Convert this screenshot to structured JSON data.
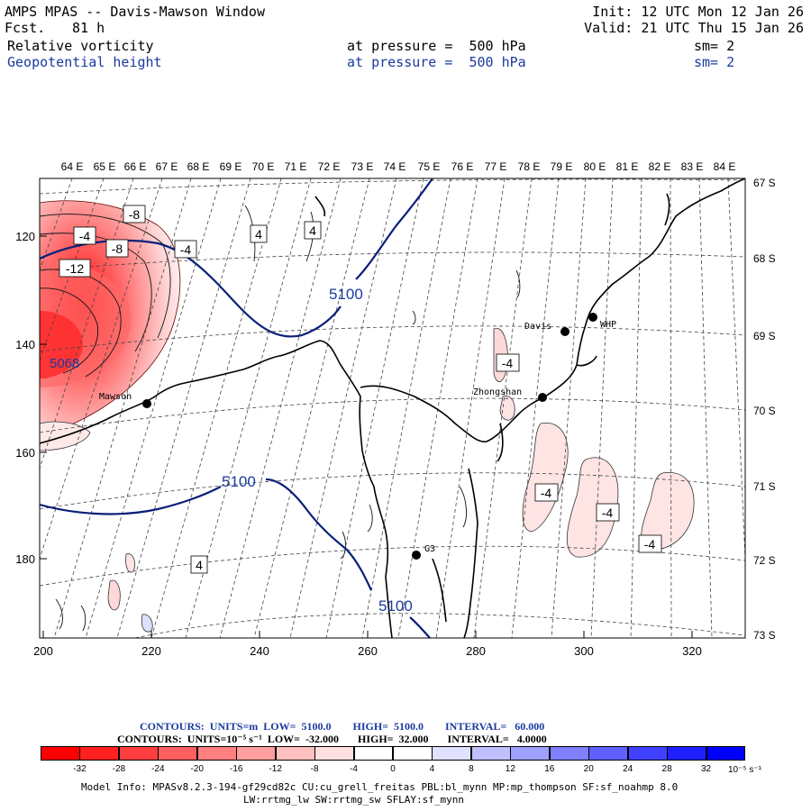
{
  "header": {
    "title": "AMPS MPAS -- Davis-Mawson Window",
    "fcst_label": "Fcst.",
    "fcst_value": "81 h",
    "init": "Init: 12 UTC Mon 12 Jan 26",
    "valid": "Valid: 21 UTC Thu 15 Jan 26",
    "field1_name": "Relative vorticity",
    "field1_pressure": "at pressure =  500 hPa",
    "field1_sm": "sm= 2",
    "field2_name": "Geopotential height",
    "field2_pressure": "at pressure =  500 hPa",
    "field2_sm": "sm= 2"
  },
  "map": {
    "top_longitudes": [
      "64 E",
      "65 E",
      "66 E",
      "67 E",
      "68 E",
      "69 E",
      "70 E",
      "71 E",
      "72 E",
      "73 E",
      "74 E",
      "75 E",
      "76 E",
      "77 E",
      "78 E",
      "79 E",
      "80 E",
      "81 E",
      "82 E",
      "83 E",
      "84 E"
    ],
    "right_latitudes": [
      "67 S",
      "68 S",
      "69 S",
      "70 S",
      "71 S",
      "72 S",
      "73 S"
    ],
    "left_ticks": [
      "120",
      "140",
      "160",
      "180"
    ],
    "bottom_ticks": [
      "200",
      "220",
      "240",
      "260",
      "280",
      "300",
      "320"
    ],
    "stations": [
      {
        "name": "Davis"
      },
      {
        "name": "WHP"
      },
      {
        "name": "Zhongshan"
      },
      {
        "name": "Mawson"
      },
      {
        "name": "G3"
      }
    ],
    "height_labels": [
      "5100",
      "5100",
      "5100"
    ],
    "low_label": "5068",
    "vort_labels": [
      "-8",
      "-4",
      "-8",
      "-4",
      "-12",
      "4",
      "4",
      "-4",
      "-4",
      "-4",
      "-4",
      "4"
    ],
    "colors": {
      "height_contour": "#0a1f7a",
      "coast": "#000000",
      "grid": "#555555"
    }
  },
  "footer": {
    "contours1": "CONTOURS:  UNITS=m  LOW=  5100.0        HIGH=  5100.0        INTERVAL=   60.000",
    "contours2": "CONTOURS:  UNITS=10⁻⁵ s⁻¹  LOW=  -32.000       HIGH=  32.000       INTERVAL=   4.0000",
    "colorbar_labels": [
      "-32",
      "-28",
      "-24",
      "-20",
      "-16",
      "-12",
      "-8",
      "-4",
      "0",
      "4",
      "8",
      "12",
      "16",
      "20",
      "24",
      "28",
      "32"
    ],
    "colorbar_unit": "10⁻⁵ s⁻¹",
    "colorbar_colors": [
      "#ff0000",
      "#ff2020",
      "#ff3f3f",
      "#ff6060",
      "#ff8080",
      "#ff9f9f",
      "#ffc0c0",
      "#ffe0e0",
      "#ffffff",
      "#ffffff",
      "#e0e0ff",
      "#c0c0ff",
      "#a0a0ff",
      "#8080ff",
      "#6060ff",
      "#4040ff",
      "#2020ff",
      "#0000ff"
    ],
    "model_info1": "Model Info: MPASv8.2.3-194-gf29cd82c CU:cu_grell_freitas PBL:bl_mynn MP:mp_thompson SF:sf_noahmp 8.0",
    "model_info2": "LW:rrtmg_lw SW:rrtmg_sw SFLAY:sf_mynn"
  }
}
